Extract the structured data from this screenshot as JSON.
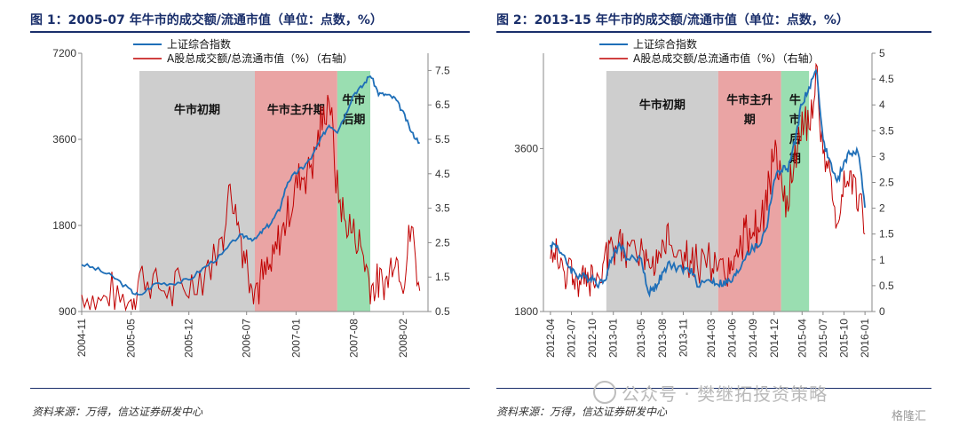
{
  "charts": [
    {
      "title": "图 1：2005-07 年牛市的成交额/流通市值（单位：点数，%）",
      "source": "资料来源：万得，信达证券研发中心",
      "chart_data": {
        "type": "line",
        "series": [
          {
            "name": "上证综合指数",
            "color": "#1f6fb8",
            "axis": "left"
          },
          {
            "name": "A股总成交额/总流通市值（%）（右轴）",
            "color": "#c00000",
            "axis": "right"
          }
        ],
        "left_axis": {
          "type": "log",
          "ticks": [
            "7200",
            "3600",
            "1800",
            "900"
          ],
          "tick_values": [
            7200,
            3600,
            1800,
            900
          ]
        },
        "right_axis": {
          "ticks": [
            "7.5",
            "6.5",
            "5.5",
            "4.5",
            "3.5",
            "2.5",
            "1.5",
            "0.5"
          ],
          "tick_values": [
            7.5,
            6.5,
            5.5,
            4.5,
            3.5,
            2.5,
            1.5,
            0.5
          ],
          "ylim": [
            0.5,
            8
          ]
        },
        "x_ticks": [
          "2004-11",
          "2005-05",
          "2005-12",
          "2006-07",
          "2007-01",
          "2007-08",
          "2008-02"
        ],
        "shaded_periods": [
          {
            "label": "牛市初期",
            "color": "#c9c9c9",
            "start": "2005-06",
            "end": "2006-08"
          },
          {
            "label": "牛市主升期",
            "color": "#e89a9a",
            "start": "2006-08",
            "end": "2007-06"
          },
          {
            "label": "牛市后期",
            "color": "#8fdaa8",
            "start": "2007-06",
            "end": "2007-10"
          }
        ],
        "index_points": [
          [
            "2004-11",
            1320
          ],
          [
            "2005-01",
            1260
          ],
          [
            "2005-03",
            1180
          ],
          [
            "2005-05",
            1060
          ],
          [
            "2005-06",
            1020
          ],
          [
            "2005-08",
            1130
          ],
          [
            "2005-10",
            1130
          ],
          [
            "2005-12",
            1160
          ],
          [
            "2006-02",
            1290
          ],
          [
            "2006-04",
            1420
          ],
          [
            "2006-06",
            1650
          ],
          [
            "2006-07",
            1650
          ],
          [
            "2006-08",
            1600
          ],
          [
            "2006-09",
            1730
          ],
          [
            "2006-10",
            1840
          ],
          [
            "2006-11",
            2050
          ],
          [
            "2006-12",
            2560
          ],
          [
            "2007-01",
            2750
          ],
          [
            "2007-02",
            2900
          ],
          [
            "2007-03",
            3150
          ],
          [
            "2007-04",
            3600
          ],
          [
            "2007-05",
            4050
          ],
          [
            "2007-06",
            3850
          ],
          [
            "2007-07",
            4400
          ],
          [
            "2007-08",
            5200
          ],
          [
            "2007-09",
            5500
          ],
          [
            "2007-10",
            6050
          ],
          [
            "2007-11",
            5200
          ],
          [
            "2007-12",
            5150
          ],
          [
            "2008-01",
            5000
          ],
          [
            "2008-02",
            4450
          ],
          [
            "2008-03",
            3800
          ],
          [
            "2008-04",
            3500
          ]
        ],
        "turnover_points": [
          [
            "2004-11",
            1.0
          ],
          [
            "2005-01",
            0.8
          ],
          [
            "2005-03",
            0.9
          ],
          [
            "2005-05",
            0.8
          ],
          [
            "2005-06",
            1.5
          ],
          [
            "2005-08",
            1.3
          ],
          [
            "2005-10",
            1.0
          ],
          [
            "2005-12",
            1.2
          ],
          [
            "2006-02",
            1.8
          ],
          [
            "2006-04",
            2.4
          ],
          [
            "2006-05",
            4.2
          ],
          [
            "2006-06",
            3.0
          ],
          [
            "2006-07",
            2.0
          ],
          [
            "2006-08",
            1.2
          ],
          [
            "2006-09",
            1.5
          ],
          [
            "2006-10",
            1.7
          ],
          [
            "2006-11",
            2.6
          ],
          [
            "2006-12",
            3.3
          ],
          [
            "2007-01",
            4.2
          ],
          [
            "2007-02",
            4.5
          ],
          [
            "2007-03",
            4.9
          ],
          [
            "2007-04",
            5.8
          ],
          [
            "2007-05",
            6.8
          ],
          [
            "2007-06",
            4.0
          ],
          [
            "2007-07",
            3.0
          ],
          [
            "2007-08",
            2.8
          ],
          [
            "2007-09",
            2.3
          ],
          [
            "2007-10",
            1.3
          ],
          [
            "2007-11",
            1.1
          ],
          [
            "2007-12",
            1.4
          ],
          [
            "2008-01",
            2.2
          ],
          [
            "2008-02",
            1.4
          ],
          [
            "2008-03",
            3.0
          ],
          [
            "2008-04",
            1.1
          ]
        ]
      }
    },
    {
      "title": "图 2：2013-15 年牛市的成交额/流通市值（单位：点数，%）",
      "source": "资料来源：万得，信达证券研发中心",
      "chart_data": {
        "type": "line",
        "series": [
          {
            "name": "上证综合指数",
            "color": "#1f6fb8",
            "axis": "left"
          },
          {
            "name": "A股总成交额/总流通市值（%）（右轴）",
            "color": "#c00000",
            "axis": "right"
          }
        ],
        "left_axis": {
          "type": "log",
          "ticks": [
            "3600",
            "1800"
          ],
          "tick_values": [
            3600,
            1800
          ]
        },
        "right_axis": {
          "ticks": [
            "5",
            "4.5",
            "4",
            "3.5",
            "3",
            "2.5",
            "2",
            "1.5",
            "1",
            "0.5",
            "0"
          ],
          "tick_values": [
            5,
            4.5,
            4,
            3.5,
            3,
            2.5,
            2,
            1.5,
            1,
            0.5,
            0
          ],
          "ylim": [
            0,
            5
          ]
        },
        "x_ticks": [
          "2012-04",
          "2012-07",
          "2012-10",
          "2013-01",
          "2013-05",
          "2013-08",
          "2013-11",
          "2014-03",
          "2014-06",
          "2014-09",
          "2014-12",
          "2015-04",
          "2015-07",
          "2015-10",
          "2016-01"
        ],
        "shaded_periods": [
          {
            "label": "牛市初期",
            "color": "#c9c9c9",
            "start": "2012-12",
            "end": "2014-04"
          },
          {
            "label": "牛市主升期",
            "color": "#e89a9a",
            "start": "2014-04",
            "end": "2015-01"
          },
          {
            "label": "牛市后期",
            "color": "#8fdaa8",
            "start": "2015-01",
            "end": "2015-05"
          }
        ],
        "index_points": [
          [
            "2012-04",
            2400
          ],
          [
            "2012-05",
            2380
          ],
          [
            "2012-06",
            2250
          ],
          [
            "2012-07",
            2150
          ],
          [
            "2012-08",
            2100
          ],
          [
            "2012-09",
            2080
          ],
          [
            "2012-10",
            2080
          ],
          [
            "2012-11",
            2020
          ],
          [
            "2012-12",
            2100
          ],
          [
            "2013-01",
            2300
          ],
          [
            "2013-02",
            2400
          ],
          [
            "2013-03",
            2250
          ],
          [
            "2013-05",
            2250
          ],
          [
            "2013-06",
            1950
          ],
          [
            "2013-07",
            2000
          ],
          [
            "2013-08",
            2100
          ],
          [
            "2013-09",
            2200
          ],
          [
            "2013-11",
            2150
          ],
          [
            "2013-12",
            2150
          ],
          [
            "2014-01",
            2030
          ],
          [
            "2014-03",
            2050
          ],
          [
            "2014-04",
            2030
          ],
          [
            "2014-05",
            2030
          ],
          [
            "2014-06",
            2050
          ],
          [
            "2014-07",
            2150
          ],
          [
            "2014-08",
            2300
          ],
          [
            "2014-09",
            2350
          ],
          [
            "2014-10",
            2400
          ],
          [
            "2014-11",
            2600
          ],
          [
            "2014-12",
            3150
          ],
          [
            "2015-01",
            3300
          ],
          [
            "2015-02",
            3300
          ],
          [
            "2015-03",
            3700
          ],
          [
            "2015-04",
            4400
          ],
          [
            "2015-05",
            4600
          ],
          [
            "2015-06",
            5100
          ],
          [
            "2015-07",
            3700
          ],
          [
            "2015-08",
            3400
          ],
          [
            "2015-09",
            3100
          ],
          [
            "2015-10",
            3400
          ],
          [
            "2015-11",
            3550
          ],
          [
            "2015-12",
            3550
          ],
          [
            "2016-01",
            2800
          ]
        ],
        "turnover_points": [
          [
            "2012-04",
            1.0
          ],
          [
            "2012-05",
            1.1
          ],
          [
            "2012-06",
            0.8
          ],
          [
            "2012-07",
            0.7
          ],
          [
            "2012-08",
            0.6
          ],
          [
            "2012-09",
            0.6
          ],
          [
            "2012-10",
            0.6
          ],
          [
            "2012-11",
            0.5
          ],
          [
            "2012-12",
            0.9
          ],
          [
            "2013-01",
            1.2
          ],
          [
            "2013-02",
            1.3
          ],
          [
            "2013-03",
            1.1
          ],
          [
            "2013-05",
            1.2
          ],
          [
            "2013-06",
            0.9
          ],
          [
            "2013-07",
            1.0
          ],
          [
            "2013-08",
            1.2
          ],
          [
            "2013-09",
            1.4
          ],
          [
            "2013-11",
            1.0
          ],
          [
            "2013-12",
            1.0
          ],
          [
            "2014-01",
            0.9
          ],
          [
            "2014-03",
            1.0
          ],
          [
            "2014-04",
            0.7
          ],
          [
            "2014-05",
            0.7
          ],
          [
            "2014-06",
            0.8
          ],
          [
            "2014-07",
            1.0
          ],
          [
            "2014-08",
            1.5
          ],
          [
            "2014-09",
            1.5
          ],
          [
            "2014-10",
            1.6
          ],
          [
            "2014-11",
            2.2
          ],
          [
            "2014-12",
            3.0
          ],
          [
            "2015-01",
            2.6
          ],
          [
            "2015-02",
            2.1
          ],
          [
            "2015-03",
            3.0
          ],
          [
            "2015-04",
            3.6
          ],
          [
            "2015-05",
            3.5
          ],
          [
            "2015-06",
            4.6
          ],
          [
            "2015-07",
            3.1
          ],
          [
            "2015-08",
            2.4
          ],
          [
            "2015-09",
            1.6
          ],
          [
            "2015-10",
            2.5
          ],
          [
            "2015-11",
            2.6
          ],
          [
            "2015-12",
            2.3
          ],
          [
            "2016-01",
            1.5
          ]
        ]
      }
    }
  ],
  "watermark": "公众号 · 樊继拓投资策略",
  "logo": "格隆汇"
}
